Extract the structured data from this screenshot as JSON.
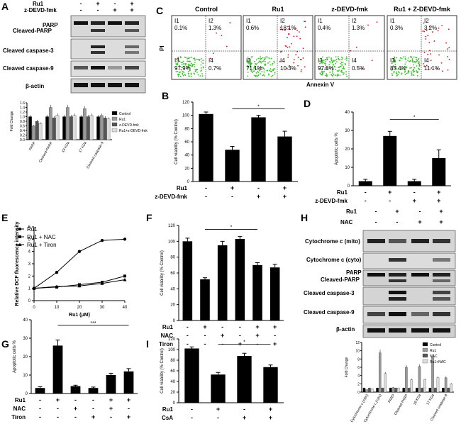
{
  "panel_letters": {
    "A": "A",
    "B": "B",
    "C": "C",
    "D": "D",
    "E": "E",
    "F": "F",
    "G": "G",
    "H": "H",
    "I": "I"
  },
  "western_A": {
    "treat_rows": [
      {
        "label": "Ru1",
        "marks": [
          "-",
          "+",
          "-",
          "+"
        ]
      },
      {
        "label": "z-DEVD-fmk",
        "marks": [
          "-",
          "-",
          "+",
          "+"
        ]
      }
    ],
    "blots": [
      "PARP\nCleaved-PARP",
      "Cleaved caspase-3",
      "Cleaved caspase-9",
      "β-actin"
    ],
    "blot_line1": "PARP",
    "blot_line2": "Cleaved-PARP"
  },
  "flow_C": {
    "titles": [
      "Control",
      "Ru1",
      "z-DEVD-fmk",
      "Ru1 + Z-DEVD-fmk"
    ],
    "quadrants": [
      {
        "I1": "I1",
        "v1": "0.1%",
        "I2": "I2",
        "v2": "1.3%",
        "I3": "I3",
        "v3": "97.9%",
        "I4": "I4",
        "v4": "0.7%"
      },
      {
        "I1": "I1",
        "v1": "0.6%",
        "I2": "I2",
        "v2": "18.1%",
        "I3": "I3",
        "v3": "71.1%",
        "I4": "I4",
        "v4": "10.3%"
      },
      {
        "I1": "I1",
        "v1": "0.4%",
        "I2": "I2",
        "v2": "1.3%",
        "I3": "I3",
        "v3": "97.8%",
        "I4": "I4",
        "v4": "0.5%"
      },
      {
        "I1": "I1",
        "v1": "0.3%",
        "I2": "I2",
        "v2": "3.2%",
        "I3": "I3",
        "v3": "85.4%",
        "I4": "I4",
        "v4": "11.1%"
      }
    ],
    "xlabel": "Annexin V",
    "ylabel": "PI"
  },
  "western_H": {
    "treat_rows": [
      {
        "label": "Ru1",
        "marks": [
          "-",
          "+",
          "-",
          "+"
        ]
      },
      {
        "label": "NAC",
        "marks": [
          "-",
          "-",
          "+",
          "+"
        ]
      }
    ],
    "blots": [
      "Cytochrome c (mito)",
      "Cytochrome c (cyto)",
      "PARP",
      "Cleaved-PARP",
      "Cleaved caspase-3",
      "Cleaved caspase-9",
      "β-actin"
    ]
  },
  "chart_data": [
    {
      "id": "A_quant",
      "type": "bar",
      "ylabel": "Fold Change",
      "ylim": [
        0,
        1.6
      ],
      "yticks": [
        "0.0",
        "0.2",
        "0.4",
        "0.6",
        "0.8",
        "1.0",
        "1.2",
        "1.4",
        "1.6"
      ],
      "categories": [
        "PARP",
        "Cleaved-PARP",
        "19 KDa",
        "17 KDa",
        "Cleaved caspase-9"
      ],
      "series": [
        {
          "name": "Control",
          "color": "#000000",
          "values": [
            1,
            1,
            1,
            1,
            1
          ]
        },
        {
          "name": "Ru1",
          "color": "#999999",
          "values": [
            0.6,
            1.4,
            1.4,
            1.35,
            1.05
          ]
        },
        {
          "name": "z-DEVD-fmk",
          "color": "#555555",
          "values": [
            0.8,
            0.95,
            1.0,
            1.0,
            0.95
          ]
        },
        {
          "name": "Ru1+z-DEVD-fmk",
          "color": "#dddddd",
          "values": [
            0.7,
            1.05,
            1.05,
            1.05,
            0.9
          ]
        }
      ]
    },
    {
      "id": "B",
      "type": "bar",
      "ylabel": "Cell viability (% Control)",
      "ylim": [
        0,
        120
      ],
      "yticks": [
        "0",
        "20",
        "40",
        "60",
        "80",
        "100",
        "120"
      ],
      "categories": [
        "1",
        "2",
        "3",
        "4"
      ],
      "values": [
        102,
        48,
        97,
        68
      ],
      "errors": [
        3,
        5,
        3,
        8
      ],
      "treatments": [
        {
          "label": "Ru1",
          "marks": [
            "-",
            "+",
            "-",
            "+"
          ]
        },
        {
          "label": "z-DEVD-fmk",
          "marks": [
            "-",
            "-",
            "+",
            "+"
          ]
        }
      ],
      "sig": "*"
    },
    {
      "id": "D",
      "type": "bar",
      "ylabel": "Apoptotic cells %",
      "ylim": [
        0,
        40
      ],
      "yticks": [
        "0",
        "10",
        "20",
        "30",
        "40"
      ],
      "categories": [
        "1",
        "2",
        "3",
        "4"
      ],
      "values": [
        2.5,
        27,
        2.5,
        15
      ],
      "errors": [
        1,
        2.5,
        1,
        4.5
      ],
      "treatments": [
        {
          "label": "Ru1",
          "marks": [
            "-",
            "+",
            "-",
            "+"
          ]
        },
        {
          "label": "z-DEVD-fmk",
          "marks": [
            "-",
            "-",
            "+",
            "+"
          ]
        }
      ],
      "sig": "*"
    },
    {
      "id": "E",
      "type": "line",
      "ylabel": "Relative DCF fluorescence intensity",
      "xlabel": "Ru1 (μM)",
      "xlim": [
        0,
        40
      ],
      "ylim": [
        0,
        6
      ],
      "xticks": [
        "0",
        "10",
        "20",
        "30",
        "40"
      ],
      "yticks": [
        "0",
        "1",
        "2",
        "3",
        "4",
        "5",
        "6"
      ],
      "x": [
        0,
        10,
        20,
        30,
        40
      ],
      "series": [
        {
          "name": "Ru1",
          "marker": "circle",
          "values": [
            1,
            2.3,
            4.0,
            4.9,
            5.0
          ]
        },
        {
          "name": "Ru1 + NAC",
          "marker": "square",
          "values": [
            1,
            1.1,
            1.3,
            1.5,
            2.0
          ]
        },
        {
          "name": "Ru1 + Tiron",
          "marker": "triangle",
          "values": [
            1,
            1.15,
            1.2,
            1.4,
            1.7
          ]
        }
      ]
    },
    {
      "id": "F",
      "type": "bar",
      "ylabel": "Cell viability (% Control)",
      "ylim": [
        0,
        120
      ],
      "yticks": [
        "0",
        "20",
        "40",
        "60",
        "80",
        "100",
        "120"
      ],
      "categories": [
        "1",
        "2",
        "3",
        "4",
        "5",
        "6"
      ],
      "values": [
        100,
        52,
        95,
        103,
        70,
        67
      ],
      "errors": [
        4,
        2,
        5,
        3,
        3,
        4
      ],
      "treatments": [
        {
          "label": "Ru1",
          "marks": [
            "-",
            "+",
            "-",
            "-",
            "+",
            "+"
          ]
        },
        {
          "label": "NAC",
          "marks": [
            "-",
            "-",
            "+",
            "-",
            "+",
            "-"
          ]
        },
        {
          "label": "Tiron",
          "marks": [
            "-",
            "-",
            "-",
            "+",
            "-",
            "+"
          ]
        }
      ],
      "sig": "*"
    },
    {
      "id": "G",
      "type": "bar",
      "ylabel": "Apoptotic cells %",
      "ylim": [
        0,
        40
      ],
      "yticks": [
        "0",
        "10",
        "20",
        "30",
        "40"
      ],
      "categories": [
        "1",
        "2",
        "3",
        "4",
        "5",
        "6"
      ],
      "values": [
        3,
        26,
        4,
        3,
        10,
        12
      ],
      "errors": [
        0.7,
        3,
        0.5,
        0.5,
        1,
        1.5
      ],
      "treatments": [
        {
          "label": "Ru1",
          "marks": [
            "-",
            "+",
            "-",
            "-",
            "+",
            "+"
          ]
        },
        {
          "label": "NAC",
          "marks": [
            "-",
            "-",
            "+",
            "-",
            "+",
            "-"
          ]
        },
        {
          "label": "Tiron",
          "marks": [
            "-",
            "-",
            "-",
            "+",
            "-",
            "+"
          ]
        }
      ],
      "sig": "***"
    },
    {
      "id": "I",
      "type": "bar",
      "ylabel": "Cell viability (% Control)",
      "ylim": [
        0,
        120
      ],
      "yticks": [
        "0",
        "20",
        "40",
        "60",
        "80",
        "100",
        "120"
      ],
      "categories": [
        "1",
        "2",
        "3",
        "4"
      ],
      "values": [
        102,
        53,
        88,
        67
      ],
      "errors": [
        3,
        4,
        5,
        4
      ],
      "treatments": [
        {
          "label": "Ru1",
          "marks": [
            "-",
            "+",
            "-",
            "+"
          ]
        },
        {
          "label": "CsA",
          "marks": [
            "-",
            "-",
            "+",
            "+"
          ]
        }
      ],
      "sig": "*"
    },
    {
      "id": "H_quant",
      "type": "bar",
      "ylabel": "Fold Change",
      "ylim": [
        0,
        12
      ],
      "yticks": [
        "0",
        "2",
        "4",
        "6",
        "8",
        "10",
        "12"
      ],
      "categories": [
        "Cytochrome c (mito)",
        "Cytochrome c (cyto)",
        "PARP",
        "Cleaved-PARP",
        "19 KDa",
        "17 KDa",
        "Cleaved caspase-9"
      ],
      "series": [
        {
          "name": "Control",
          "color": "#000000",
          "values": [
            1,
            1,
            1,
            1,
            1,
            1,
            1
          ]
        },
        {
          "name": "Ru1",
          "color": "#999999",
          "values": [
            0.6,
            9.5,
            1.1,
            6,
            6.2,
            8.5,
            3.5
          ]
        },
        {
          "name": "NAC",
          "color": "#555555",
          "values": [
            1,
            1,
            1,
            1,
            1,
            1,
            1
          ]
        },
        {
          "name": "Ru1+NAC",
          "color": "#dddddd",
          "values": [
            0.8,
            4.5,
            1,
            3,
            3,
            3.5,
            2
          ]
        }
      ]
    }
  ]
}
